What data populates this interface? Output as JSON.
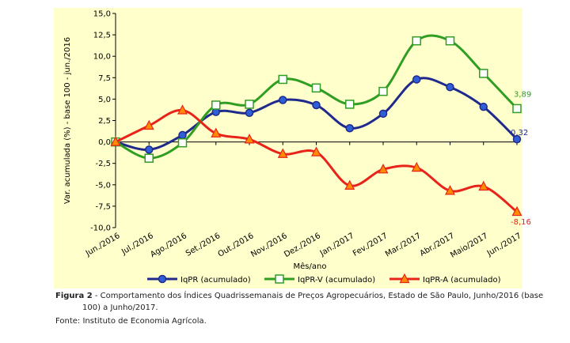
{
  "chart_data": {
    "type": "line",
    "xlabel": "Mês/ano",
    "ylabel": "Var. acumulada (%) - base 100 - jun./2016",
    "ylim": [
      -10,
      15
    ],
    "yticks": [
      "15,0",
      "12,5",
      "10,0",
      "7,5",
      "5,0",
      "2,5",
      "0,0",
      "-2,5",
      "-5,0",
      "-7,5",
      "-10,0"
    ],
    "categories": [
      "Jun./2016",
      "Jul./2016",
      "Ago./2016",
      "Set./2016",
      "Out./2016",
      "Nov./2016",
      "Dez./2016",
      "Jan./2017",
      "Fev./2017",
      "Mar./2017",
      "Abr./2017",
      "Maio/2017",
      "Jun./2017"
    ],
    "series": [
      {
        "name": "IqPR (acumulado)",
        "color": "#1f2a8c",
        "marker": "circle",
        "values": [
          0.0,
          -0.9,
          0.8,
          3.5,
          3.4,
          4.9,
          4.3,
          1.6,
          3.3,
          7.3,
          6.4,
          4.1,
          0.32
        ],
        "end_label": "0,32"
      },
      {
        "name": "IqPR-V (acumulado)",
        "color": "#2f9e22",
        "marker": "square",
        "values": [
          0.0,
          -1.9,
          -0.1,
          4.3,
          4.4,
          7.3,
          6.3,
          4.4,
          5.9,
          11.8,
          11.8,
          8.0,
          3.89
        ],
        "end_label": "3,89"
      },
      {
        "name": "IqPR-A (acumulado)",
        "color": "#e8231a",
        "marker": "triangle",
        "values": [
          0.0,
          1.9,
          3.7,
          1.0,
          0.3,
          -1.4,
          -1.2,
          -5.1,
          -3.2,
          -3.0,
          -5.7,
          -5.2,
          -8.16
        ],
        "end_label": "-8,16"
      }
    ],
    "legend_position": "bottom",
    "grid": false
  },
  "caption": {
    "figure_label": "Figura 2",
    "figure_text": " - Comportamento dos Índices Quadrissemanais de Preços Agropecuários, Estado de São Paulo, Junho/2016 (base",
    "figure_text_line2": "100) a Junho/2017.",
    "source": "Fonte: Instituto de Economia Agrícola."
  }
}
